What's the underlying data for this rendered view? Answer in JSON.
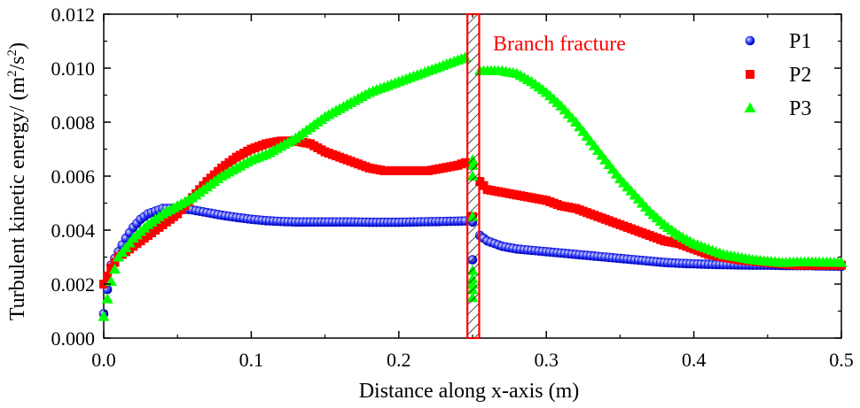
{
  "chart_data": {
    "type": "scatter",
    "title": "",
    "xlabel": "Distance along x-axis (m)",
    "ylabel_prefix": "Turbulent kinetic energy/ (m",
    "ylabel_sup1": "2",
    "ylabel_mid": "/s",
    "ylabel_sup2": "2",
    "ylabel_suffix": ")",
    "xlim": [
      0.0,
      0.5
    ],
    "ylim": [
      0.0,
      0.012
    ],
    "x_ticks": [
      0.0,
      0.1,
      0.2,
      0.3,
      0.4,
      0.5
    ],
    "x_tick_labels": [
      "0.0",
      "0.1",
      "0.2",
      "0.3",
      "0.4",
      "0.5"
    ],
    "y_ticks": [
      0.0,
      0.002,
      0.004,
      0.006,
      0.008,
      0.01,
      0.012
    ],
    "y_tick_labels": [
      "0.000",
      "0.002",
      "0.004",
      "0.006",
      "0.008",
      "0.010",
      "0.012"
    ],
    "grid": false,
    "legend_position": "top-right",
    "annotation": {
      "text": "Branch fracture",
      "x_range": [
        0.2465,
        0.2545
      ],
      "color": "#ff0000"
    },
    "series": [
      {
        "name": "P1",
        "marker": "circle",
        "color": "#0000ff",
        "segments": [
          {
            "x": [
              0.0,
              0.005,
              0.01,
              0.015,
              0.02,
              0.025,
              0.03,
              0.035,
              0.04,
              0.045,
              0.05,
              0.055,
              0.06,
              0.07,
              0.08,
              0.09,
              0.1,
              0.11,
              0.12,
              0.13,
              0.14,
              0.15,
              0.16,
              0.17,
              0.18,
              0.19,
              0.2,
              0.21,
              0.22,
              0.23,
              0.24,
              0.245
            ],
            "y": [
              0.0009,
              0.0027,
              0.0032,
              0.0037,
              0.0041,
              0.0044,
              0.0046,
              0.0047,
              0.0048,
              0.0048,
              0.0048,
              0.00478,
              0.00475,
              0.00465,
              0.00455,
              0.00447,
              0.0044,
              0.00435,
              0.00432,
              0.0043,
              0.0043,
              0.0043,
              0.0043,
              0.0043,
              0.00429,
              0.00429,
              0.00429,
              0.0043,
              0.00431,
              0.00432,
              0.00433,
              0.00434
            ]
          },
          {
            "x": [
              0.25,
              0.25
            ],
            "y": [
              0.0029,
              0.0043
            ]
          },
          {
            "x": [
              0.255,
              0.26,
              0.27,
              0.28,
              0.29,
              0.3,
              0.31,
              0.32,
              0.33,
              0.34,
              0.35,
              0.36,
              0.37,
              0.38,
              0.39,
              0.4,
              0.41,
              0.42,
              0.43,
              0.44,
              0.45,
              0.46,
              0.47,
              0.48,
              0.49,
              0.5
            ],
            "y": [
              0.0038,
              0.0036,
              0.0034,
              0.0033,
              0.00325,
              0.0032,
              0.00315,
              0.0031,
              0.00305,
              0.003,
              0.00295,
              0.0029,
              0.00285,
              0.0028,
              0.00277,
              0.00275,
              0.00273,
              0.00272,
              0.00271,
              0.0027,
              0.0027,
              0.00269,
              0.00268,
              0.00268,
              0.00267,
              0.00266
            ]
          }
        ]
      },
      {
        "name": "P2",
        "marker": "square",
        "color": "#ff0000",
        "segments": [
          {
            "x": [
              0.0,
              0.005,
              0.01,
              0.015,
              0.02,
              0.03,
              0.04,
              0.05,
              0.06,
              0.07,
              0.08,
              0.09,
              0.1,
              0.11,
              0.12,
              0.13,
              0.14,
              0.15,
              0.16,
              0.17,
              0.18,
              0.19,
              0.2,
              0.21,
              0.22,
              0.23,
              0.24,
              0.245
            ],
            "y": [
              0.002,
              0.0026,
              0.003,
              0.0032,
              0.0034,
              0.0038,
              0.0042,
              0.0046,
              0.0052,
              0.0058,
              0.0063,
              0.0067,
              0.007,
              0.0072,
              0.0073,
              0.0073,
              0.0072,
              0.0069,
              0.0067,
              0.0065,
              0.0063,
              0.0062,
              0.0062,
              0.0062,
              0.0062,
              0.0063,
              0.0064,
              0.0065
            ]
          },
          {
            "x": [
              0.25,
              0.25
            ],
            "y": [
              0.0045,
              0.0064
            ]
          },
          {
            "x": [
              0.255,
              0.26,
              0.27,
              0.28,
              0.29,
              0.3,
              0.31,
              0.32,
              0.33,
              0.34,
              0.35,
              0.36,
              0.37,
              0.38,
              0.39,
              0.4,
              0.41,
              0.42,
              0.43,
              0.44,
              0.45,
              0.46,
              0.47,
              0.48,
              0.49,
              0.5
            ],
            "y": [
              0.0058,
              0.0055,
              0.0054,
              0.0053,
              0.0052,
              0.0051,
              0.0049,
              0.0048,
              0.0046,
              0.0044,
              0.0042,
              0.004,
              0.0038,
              0.0036,
              0.0035,
              0.0033,
              0.0031,
              0.003,
              0.0029,
              0.00285,
              0.0028,
              0.00275,
              0.0027,
              0.0027,
              0.0027,
              0.0027
            ]
          }
        ]
      },
      {
        "name": "P3",
        "marker": "triangle",
        "color": "#00ff00",
        "segments": [
          {
            "x": [
              0.0,
              0.005,
              0.01,
              0.02,
              0.03,
              0.04,
              0.05,
              0.06,
              0.07,
              0.08,
              0.09,
              0.1,
              0.11,
              0.12,
              0.13,
              0.14,
              0.15,
              0.16,
              0.17,
              0.18,
              0.19,
              0.2,
              0.21,
              0.22,
              0.23,
              0.24,
              0.245
            ],
            "y": [
              0.0008,
              0.0021,
              0.003,
              0.0037,
              0.0042,
              0.0046,
              0.0049,
              0.0052,
              0.0056,
              0.006,
              0.0063,
              0.0066,
              0.0068,
              0.0071,
              0.0074,
              0.0078,
              0.0082,
              0.0085,
              0.0088,
              0.0091,
              0.0093,
              0.0095,
              0.0097,
              0.0099,
              0.0101,
              0.0103,
              0.0104
            ]
          },
          {
            "x": [
              0.25,
              0.25,
              0.25,
              0.25,
              0.25,
              0.25,
              0.25,
              0.25,
              0.25
            ],
            "y": [
              0.0015,
              0.0018,
              0.002,
              0.0022,
              0.0025,
              0.0045,
              0.006,
              0.0064,
              0.0066
            ]
          },
          {
            "x": [
              0.255,
              0.26,
              0.27,
              0.28,
              0.29,
              0.3,
              0.31,
              0.32,
              0.33,
              0.34,
              0.35,
              0.36,
              0.37,
              0.38,
              0.39,
              0.4,
              0.41,
              0.42,
              0.43,
              0.44,
              0.45,
              0.46,
              0.47,
              0.48,
              0.49,
              0.5
            ],
            "y": [
              0.0099,
              0.0099,
              0.0099,
              0.0098,
              0.0095,
              0.0091,
              0.0086,
              0.008,
              0.0073,
              0.0066,
              0.0059,
              0.0053,
              0.0047,
              0.0042,
              0.0038,
              0.0035,
              0.0033,
              0.0031,
              0.003,
              0.0029,
              0.00285,
              0.0028,
              0.00282,
              0.00282,
              0.00281,
              0.0028
            ]
          }
        ]
      }
    ]
  }
}
